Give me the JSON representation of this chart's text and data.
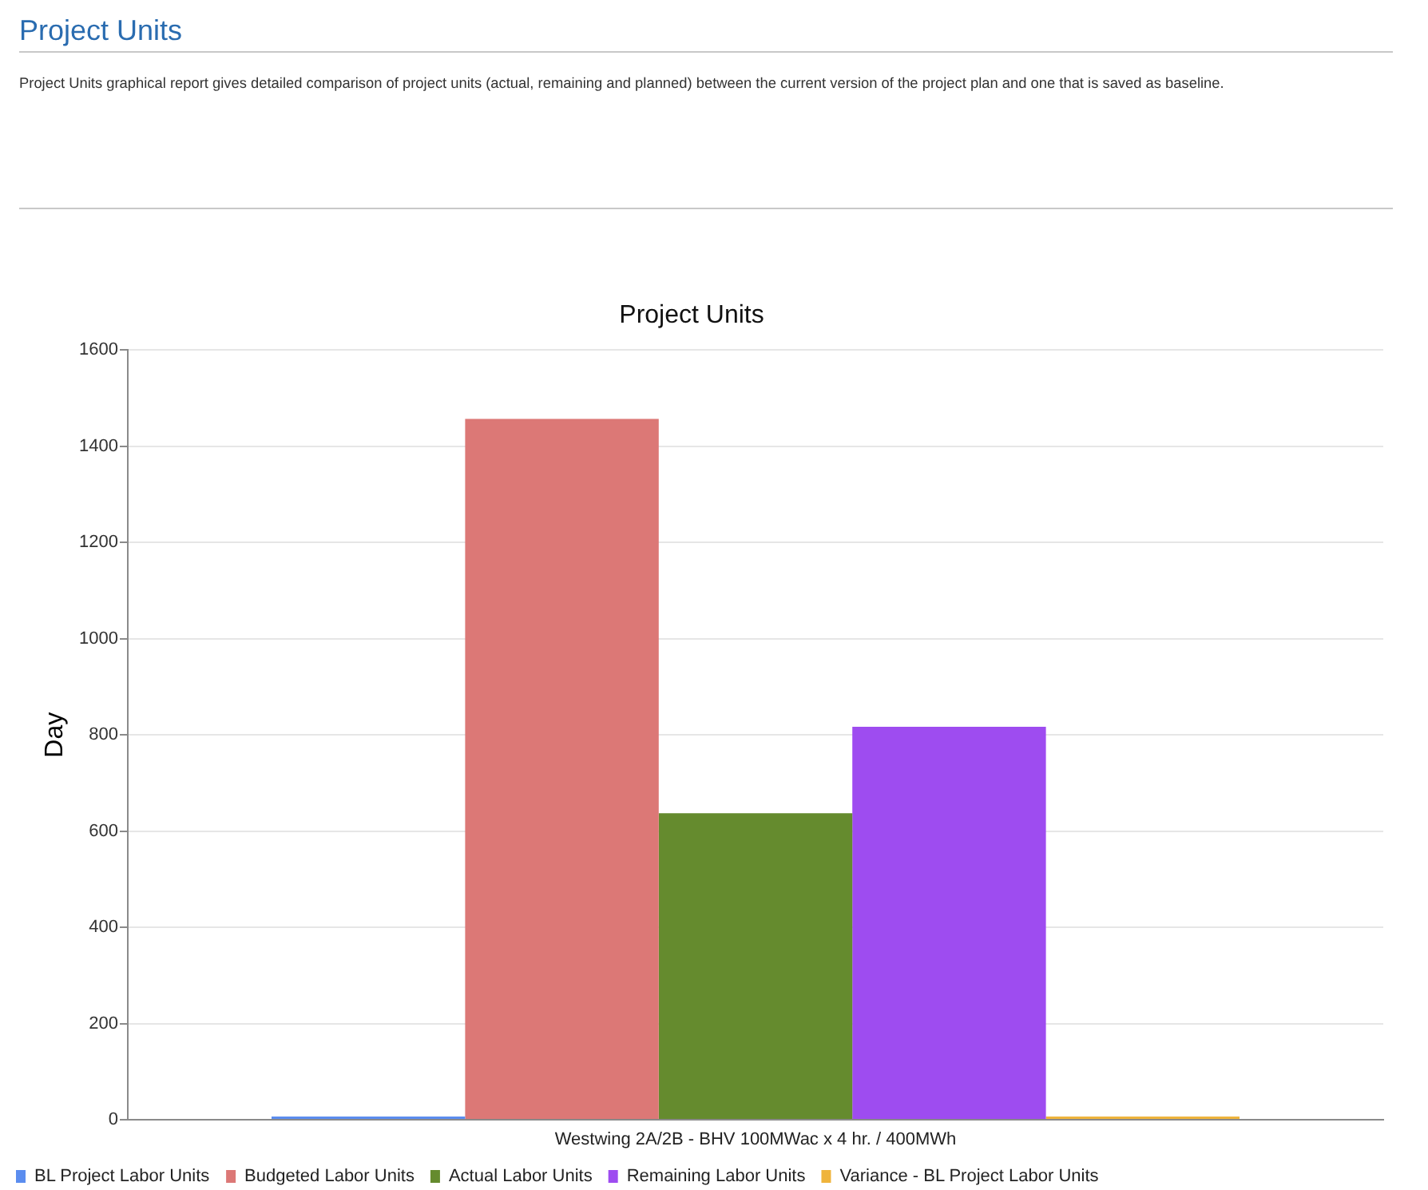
{
  "chart_data": {
    "type": "bar",
    "title": "Project Units",
    "subtitle": "Project Units graphical report gives detailed comparison of project units (actual, remaining and planned) between the current version of the project plan and one that is saved as baseline.",
    "annotations": [
      "Project Units"
    ],
    "ylabel": "Day",
    "categories": [
      "Westwing 2A/2B - BHV 100MWac x 4 hr. / 400MWh"
    ],
    "series": [
      {
        "name": "BL Project Labor Units",
        "color": "#5b8def",
        "values": [
          0
        ]
      },
      {
        "name": "Budgeted Labor Units",
        "color": "#dc7876",
        "values": [
          1457
        ]
      },
      {
        "name": "Actual Labor Units",
        "color": "#658b2e",
        "values": [
          637
        ]
      },
      {
        "name": "Remaining Labor Units",
        "color": "#9e4cf0",
        "values": [
          817
        ]
      },
      {
        "name": "Variance - BL Project Labor Units",
        "color": "#efb43c",
        "values": [
          0
        ]
      }
    ],
    "ylim": [
      0,
      1600
    ],
    "yticks": [
      0,
      200,
      400,
      600,
      800,
      1000,
      1200,
      1400,
      1600
    ],
    "grid": "y",
    "legend": "bottom left"
  }
}
